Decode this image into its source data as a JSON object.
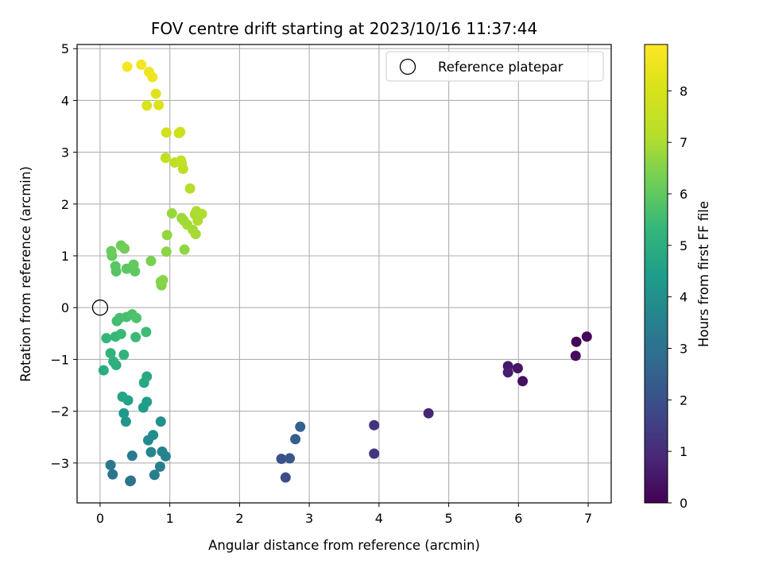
{
  "chart_data": {
    "type": "scatter",
    "title": "FOV centre drift starting at 2023/10/16 11:37:44",
    "xlabel": "Angular distance from reference (arcmin)",
    "ylabel": "Rotation from reference (arcmin)",
    "xlim": [
      -0.33,
      7.33
    ],
    "ylim": [
      -3.77,
      5.08
    ],
    "xticks": [
      0,
      1,
      2,
      3,
      4,
      5,
      6,
      7
    ],
    "yticks": [
      -3,
      -2,
      -1,
      0,
      1,
      2,
      3,
      4,
      5
    ],
    "grid": true,
    "colormap": "viridis",
    "colorbar": {
      "label": "Hours from first FF file",
      "min": 0,
      "max": 8.9,
      "ticks": [
        0,
        1,
        2,
        3,
        4,
        5,
        6,
        7,
        8
      ]
    },
    "legend": {
      "position": "top-right",
      "entries": [
        "Reference platepar"
      ]
    },
    "reference_point": {
      "x": 0,
      "y": 0
    },
    "points": [
      {
        "x": 6.83,
        "y": -0.66,
        "h": 0.05
      },
      {
        "x": 6.98,
        "y": -0.56,
        "h": 0.15
      },
      {
        "x": 6.82,
        "y": -0.93,
        "h": 0.25
      },
      {
        "x": 6.06,
        "y": -1.42,
        "h": 0.35
      },
      {
        "x": 5.99,
        "y": -1.17,
        "h": 0.45
      },
      {
        "x": 5.85,
        "y": -1.13,
        "h": 0.55
      },
      {
        "x": 5.85,
        "y": -1.25,
        "h": 0.65
      },
      {
        "x": 4.71,
        "y": -2.04,
        "h": 0.85
      },
      {
        "x": 3.93,
        "y": -2.27,
        "h": 1.15
      },
      {
        "x": 3.93,
        "y": -2.82,
        "h": 1.25
      },
      {
        "x": 2.66,
        "y": -3.28,
        "h": 1.85
      },
      {
        "x": 2.6,
        "y": -2.92,
        "h": 2.0
      },
      {
        "x": 2.72,
        "y": -2.91,
        "h": 2.15
      },
      {
        "x": 2.8,
        "y": -2.54,
        "h": 2.35
      },
      {
        "x": 2.87,
        "y": -2.3,
        "h": 2.5
      },
      {
        "x": 0.44,
        "y": -3.34,
        "h": 3.0
      },
      {
        "x": 0.43,
        "y": -3.35,
        "h": 3.05
      },
      {
        "x": 0.18,
        "y": -3.22,
        "h": 3.1
      },
      {
        "x": 0.15,
        "y": -3.04,
        "h": 3.2
      },
      {
        "x": 0.46,
        "y": -2.86,
        "h": 3.3
      },
      {
        "x": 0.78,
        "y": -3.23,
        "h": 3.4
      },
      {
        "x": 0.86,
        "y": -3.07,
        "h": 3.45
      },
      {
        "x": 0.94,
        "y": -2.87,
        "h": 3.55
      },
      {
        "x": 0.89,
        "y": -2.78,
        "h": 3.6
      },
      {
        "x": 0.73,
        "y": -2.79,
        "h": 3.7
      },
      {
        "x": 0.69,
        "y": -2.56,
        "h": 3.8
      },
      {
        "x": 0.76,
        "y": -2.46,
        "h": 3.9
      },
      {
        "x": 0.87,
        "y": -2.2,
        "h": 4.0
      },
      {
        "x": 0.37,
        "y": -2.2,
        "h": 4.2
      },
      {
        "x": 0.34,
        "y": -2.04,
        "h": 4.3
      },
      {
        "x": 0.62,
        "y": -1.93,
        "h": 4.4
      },
      {
        "x": 0.67,
        "y": -1.82,
        "h": 4.5
      },
      {
        "x": 0.4,
        "y": -1.79,
        "h": 4.6
      },
      {
        "x": 0.32,
        "y": -1.72,
        "h": 4.7
      },
      {
        "x": 0.63,
        "y": -1.45,
        "h": 4.8
      },
      {
        "x": 0.67,
        "y": -1.33,
        "h": 4.85
      },
      {
        "x": 0.05,
        "y": -1.21,
        "h": 5.0
      },
      {
        "x": 0.23,
        "y": -1.11,
        "h": 5.05
      },
      {
        "x": 0.19,
        "y": -1.04,
        "h": 5.1
      },
      {
        "x": 0.15,
        "y": -0.88,
        "h": 5.15
      },
      {
        "x": 0.34,
        "y": -0.91,
        "h": 5.2
      },
      {
        "x": 0.09,
        "y": -0.59,
        "h": 5.3
      },
      {
        "x": 0.22,
        "y": -0.56,
        "h": 5.35
      },
      {
        "x": 0.3,
        "y": -0.51,
        "h": 5.4
      },
      {
        "x": 0.51,
        "y": -0.57,
        "h": 5.45
      },
      {
        "x": 0.66,
        "y": -0.47,
        "h": 5.5
      },
      {
        "x": 0.24,
        "y": -0.26,
        "h": 5.55
      },
      {
        "x": 0.28,
        "y": -0.2,
        "h": 5.6
      },
      {
        "x": 0.38,
        "y": -0.18,
        "h": 5.65
      },
      {
        "x": 0.46,
        "y": -0.13,
        "h": 5.7
      },
      {
        "x": 0.52,
        "y": -0.2,
        "h": 5.75
      },
      {
        "x": 0.23,
        "y": 0.7,
        "h": 5.85
      },
      {
        "x": 0.22,
        "y": 0.8,
        "h": 5.9
      },
      {
        "x": 0.38,
        "y": 0.75,
        "h": 5.95
      },
      {
        "x": 0.5,
        "y": 0.7,
        "h": 6.0
      },
      {
        "x": 0.48,
        "y": 0.83,
        "h": 6.05
      },
      {
        "x": 0.17,
        "y": 1.0,
        "h": 6.1
      },
      {
        "x": 0.16,
        "y": 1.09,
        "h": 6.15
      },
      {
        "x": 0.3,
        "y": 1.2,
        "h": 6.2
      },
      {
        "x": 0.35,
        "y": 1.14,
        "h": 6.25
      },
      {
        "x": 0.73,
        "y": 0.9,
        "h": 6.35
      },
      {
        "x": 0.88,
        "y": 0.43,
        "h": 6.45
      },
      {
        "x": 0.87,
        "y": 0.5,
        "h": 6.5
      },
      {
        "x": 0.9,
        "y": 0.53,
        "h": 6.55
      },
      {
        "x": 0.95,
        "y": 1.08,
        "h": 6.6
      },
      {
        "x": 1.21,
        "y": 1.12,
        "h": 6.65
      },
      {
        "x": 0.96,
        "y": 1.4,
        "h": 6.7
      },
      {
        "x": 1.03,
        "y": 1.82,
        "h": 6.75
      },
      {
        "x": 1.17,
        "y": 1.73,
        "h": 6.8
      },
      {
        "x": 1.2,
        "y": 1.68,
        "h": 6.85
      },
      {
        "x": 1.25,
        "y": 1.6,
        "h": 6.9
      },
      {
        "x": 1.33,
        "y": 1.5,
        "h": 6.92
      },
      {
        "x": 1.37,
        "y": 1.42,
        "h": 6.95
      },
      {
        "x": 1.36,
        "y": 1.8,
        "h": 6.97
      },
      {
        "x": 1.38,
        "y": 1.86,
        "h": 7.0
      },
      {
        "x": 1.4,
        "y": 1.68,
        "h": 7.02
      },
      {
        "x": 1.46,
        "y": 1.81,
        "h": 7.05
      },
      {
        "x": 1.29,
        "y": 2.3,
        "h": 7.2
      },
      {
        "x": 1.19,
        "y": 2.68,
        "h": 7.3
      },
      {
        "x": 1.07,
        "y": 2.8,
        "h": 7.35
      },
      {
        "x": 0.94,
        "y": 2.89,
        "h": 7.4
      },
      {
        "x": 1.16,
        "y": 2.84,
        "h": 7.45
      },
      {
        "x": 1.17,
        "y": 2.79,
        "h": 7.5
      },
      {
        "x": 1.13,
        "y": 3.37,
        "h": 7.7
      },
      {
        "x": 1.15,
        "y": 3.39,
        "h": 7.75
      },
      {
        "x": 0.95,
        "y": 3.38,
        "h": 7.8
      },
      {
        "x": 0.67,
        "y": 3.9,
        "h": 8.05
      },
      {
        "x": 0.84,
        "y": 3.91,
        "h": 8.1
      },
      {
        "x": 0.8,
        "y": 4.13,
        "h": 8.2
      },
      {
        "x": 0.75,
        "y": 4.45,
        "h": 8.5
      },
      {
        "x": 0.7,
        "y": 4.55,
        "h": 8.55
      },
      {
        "x": 0.59,
        "y": 4.69,
        "h": 8.65
      },
      {
        "x": 0.39,
        "y": 4.65,
        "h": 8.75
      }
    ]
  }
}
